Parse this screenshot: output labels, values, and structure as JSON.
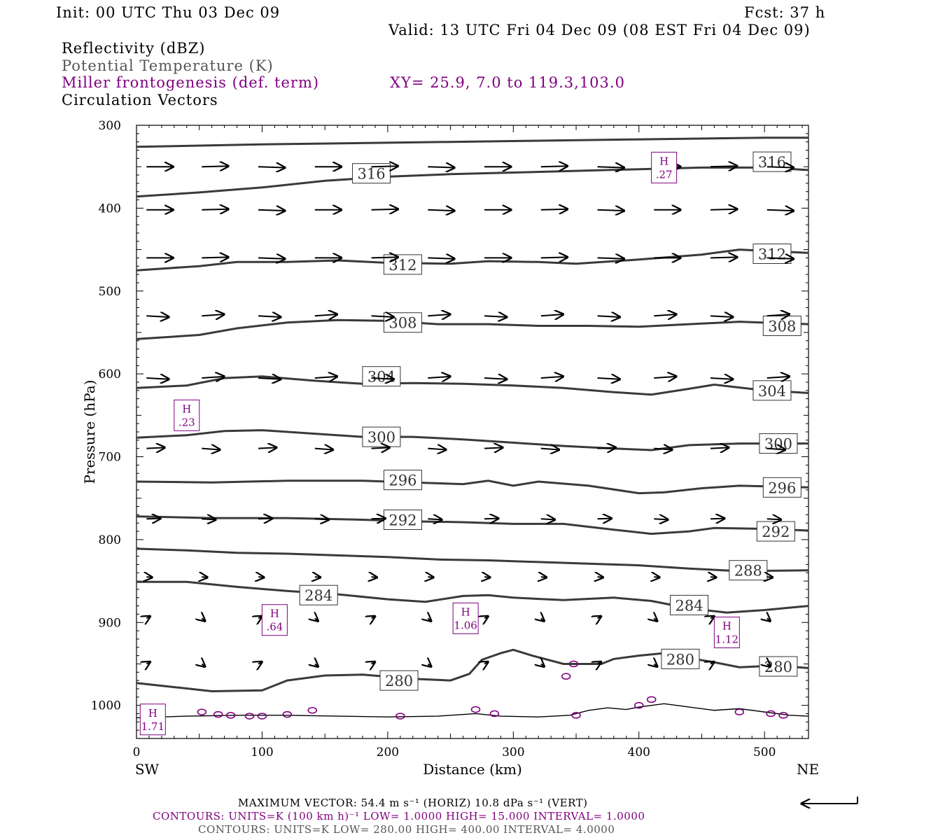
{
  "header": {
    "init": "Init: 00 UTC Thu 03 Dec 09",
    "fcst": "Fcst:   37 h",
    "valid": "Valid: 13 UTC Fri 04 Dec 09 (08 EST Fri 04 Dec 09)",
    "field1": "Reflectivity (dBZ)",
    "field2": "Potential Temperature (K)",
    "field3": "Miller frontogenesis (def. term)",
    "xy": "XY=  25.9,  7.0 to 119.3,103.0",
    "field4": "Circulation Vectors"
  },
  "footer": {
    "max_vector": "MAXIMUM VECTOR:  54.4 m s⁻¹ (HORIZ)          10.8 dPa s⁻¹ (VERT)",
    "contours1": "CONTOURS:  UNITS=K (100 km h)⁻¹  LOW=   1.0000        HIGH=  15.000       INTERVAL=    1.0000",
    "contours2": "CONTOURS:  UNITS=K  LOW=   280.00        HIGH=  400.00       INTERVAL=     4.0000"
  },
  "colors": {
    "theta": "#3a3a3a",
    "frontogenesis": "#800080",
    "vector": "#000000",
    "terrain": "#000000"
  },
  "chart_data": {
    "type": "cross-section",
    "xlabel": "Distance (km)",
    "ylabel": "Pressure (hPa)",
    "xlim": [
      0,
      535
    ],
    "ylim": [
      1040,
      300
    ],
    "x_ticks": [
      0,
      100,
      200,
      300,
      400,
      500
    ],
    "y_ticks": [
      300,
      400,
      500,
      600,
      700,
      800,
      900,
      1000
    ],
    "x_end_labels": {
      "left": "SW",
      "right": "NE"
    },
    "theta_contours": [
      {
        "label": "",
        "points": [
          [
            0,
            326
          ],
          [
            100,
            323
          ],
          [
            200,
            321
          ],
          [
            300,
            319
          ],
          [
            400,
            317
          ],
          [
            500,
            315
          ],
          [
            535,
            315
          ]
        ]
      },
      {
        "label": "316",
        "label_at": [
          187,
          358
        ],
        "label_at2": [
          506,
          344
        ],
        "points": [
          [
            0,
            386
          ],
          [
            50,
            381
          ],
          [
            100,
            375
          ],
          [
            150,
            367
          ],
          [
            200,
            362
          ],
          [
            250,
            359
          ],
          [
            300,
            357
          ],
          [
            350,
            355
          ],
          [
            400,
            353
          ],
          [
            450,
            351
          ],
          [
            500,
            351
          ],
          [
            535,
            354
          ]
        ]
      },
      {
        "label": "312",
        "label_at": [
          212,
          468
        ],
        "label_at2": [
          506,
          455
        ],
        "points": [
          [
            0,
            475
          ],
          [
            50,
            470
          ],
          [
            80,
            465
          ],
          [
            120,
            465
          ],
          [
            160,
            463
          ],
          [
            200,
            466
          ],
          [
            250,
            467
          ],
          [
            280,
            464
          ],
          [
            320,
            465
          ],
          [
            350,
            467
          ],
          [
            400,
            462
          ],
          [
            450,
            456
          ],
          [
            480,
            450
          ],
          [
            535,
            454
          ]
        ]
      },
      {
        "label": "308",
        "label_at": [
          212,
          538
        ],
        "label_at2": [
          514,
          542
        ],
        "points": [
          [
            0,
            558
          ],
          [
            50,
            553
          ],
          [
            80,
            545
          ],
          [
            120,
            538
          ],
          [
            160,
            535
          ],
          [
            200,
            536
          ],
          [
            240,
            540
          ],
          [
            280,
            540
          ],
          [
            320,
            542
          ],
          [
            360,
            542
          ],
          [
            400,
            543
          ],
          [
            440,
            540
          ],
          [
            480,
            537
          ],
          [
            535,
            540
          ]
        ]
      },
      {
        "label": "304",
        "label_at": [
          195,
          603
        ],
        "label_at2": [
          506,
          620
        ],
        "points": [
          [
            0,
            617
          ],
          [
            40,
            614
          ],
          [
            70,
            605
          ],
          [
            100,
            603
          ],
          [
            140,
            608
          ],
          [
            180,
            612
          ],
          [
            220,
            611
          ],
          [
            260,
            612
          ],
          [
            300,
            614
          ],
          [
            340,
            617
          ],
          [
            380,
            622
          ],
          [
            410,
            625
          ],
          [
            440,
            618
          ],
          [
            460,
            613
          ],
          [
            500,
            620
          ],
          [
            535,
            623
          ]
        ]
      },
      {
        "label": "300",
        "label_at": [
          195,
          676
        ],
        "label_at2": [
          511,
          684
        ],
        "points": [
          [
            0,
            677
          ],
          [
            40,
            674
          ],
          [
            70,
            669
          ],
          [
            100,
            668
          ],
          [
            140,
            672
          ],
          [
            180,
            676
          ],
          [
            220,
            676
          ],
          [
            260,
            679
          ],
          [
            300,
            683
          ],
          [
            340,
            687
          ],
          [
            380,
            690
          ],
          [
            410,
            692
          ],
          [
            440,
            686
          ],
          [
            480,
            684
          ],
          [
            535,
            684
          ]
        ]
      },
      {
        "label": "296",
        "label_at": [
          212,
          728
        ],
        "label_at2": [
          514,
          737
        ],
        "points": [
          [
            0,
            730
          ],
          [
            60,
            731
          ],
          [
            120,
            729
          ],
          [
            180,
            729
          ],
          [
            220,
            731
          ],
          [
            260,
            733
          ],
          [
            280,
            729
          ],
          [
            300,
            735
          ],
          [
            320,
            730
          ],
          [
            360,
            735
          ],
          [
            400,
            744
          ],
          [
            420,
            743
          ],
          [
            450,
            738
          ],
          [
            480,
            735
          ],
          [
            535,
            737
          ]
        ]
      },
      {
        "label": "292",
        "label_at": [
          212,
          776
        ],
        "label_at2": [
          509,
          790
        ],
        "points": [
          [
            0,
            772
          ],
          [
            60,
            774
          ],
          [
            120,
            774
          ],
          [
            180,
            776
          ],
          [
            220,
            778
          ],
          [
            260,
            779
          ],
          [
            300,
            781
          ],
          [
            340,
            781
          ],
          [
            380,
            788
          ],
          [
            410,
            793
          ],
          [
            440,
            790
          ],
          [
            460,
            786
          ],
          [
            500,
            787
          ],
          [
            535,
            789
          ]
        ]
      },
      {
        "label": "288",
        "label_at": [
          487,
          837
        ],
        "points": [
          [
            0,
            811
          ],
          [
            40,
            813
          ],
          [
            80,
            816
          ],
          [
            120,
            817
          ],
          [
            160,
            819
          ],
          [
            200,
            821
          ],
          [
            240,
            824
          ],
          [
            280,
            825
          ],
          [
            320,
            827
          ],
          [
            360,
            829
          ],
          [
            400,
            831
          ],
          [
            440,
            835
          ],
          [
            480,
            838
          ],
          [
            535,
            837
          ]
        ]
      },
      {
        "label": "284",
        "label_at": [
          145,
          867
        ],
        "label_at2": [
          440,
          879
        ],
        "points": [
          [
            0,
            851
          ],
          [
            40,
            851
          ],
          [
            80,
            857
          ],
          [
            120,
            862
          ],
          [
            160,
            866
          ],
          [
            200,
            872
          ],
          [
            230,
            875
          ],
          [
            260,
            868
          ],
          [
            280,
            867
          ],
          [
            300,
            870
          ],
          [
            340,
            873
          ],
          [
            380,
            870
          ],
          [
            410,
            874
          ],
          [
            440,
            883
          ],
          [
            470,
            888
          ],
          [
            500,
            885
          ],
          [
            535,
            880
          ]
        ]
      },
      {
        "label": "280",
        "label_at": [
          209,
          970
        ],
        "label_at2": [
          433,
          944
        ],
        "label_at3": [
          511,
          953
        ],
        "points": [
          [
            0,
            973
          ],
          [
            30,
            978
          ],
          [
            60,
            983
          ],
          [
            100,
            982
          ],
          [
            120,
            970
          ],
          [
            150,
            964
          ],
          [
            180,
            963
          ],
          [
            220,
            968
          ],
          [
            250,
            970
          ],
          [
            265,
            962
          ],
          [
            275,
            945
          ],
          [
            290,
            937
          ],
          [
            300,
            933
          ],
          [
            315,
            940
          ],
          [
            340,
            950
          ],
          [
            370,
            950
          ],
          [
            380,
            944
          ],
          [
            400,
            940
          ],
          [
            420,
            937
          ],
          [
            440,
            943
          ],
          [
            460,
            948
          ],
          [
            480,
            954
          ],
          [
            510,
            952
          ],
          [
            535,
            955
          ]
        ]
      }
    ],
    "frontogenesis_maxima": [
      {
        "label": "H",
        "value": ".27",
        "at": [
          420,
          351
        ]
      },
      {
        "label": "H",
        "value": ".23",
        "at": [
          40,
          650
        ]
      },
      {
        "label": "H",
        "value": ".64",
        "at": [
          110,
          897
        ]
      },
      {
        "label": "H",
        "value": "1.06",
        "at": [
          262,
          895
        ]
      },
      {
        "label": "H",
        "value": "1.12",
        "at": [
          470,
          912
        ]
      },
      {
        "label": "H",
        "value": "1.71",
        "at": [
          13,
          1017
        ]
      }
    ],
    "vector_levels": [
      350,
      402,
      460,
      530,
      605,
      690,
      775,
      845,
      895,
      950
    ]
  }
}
